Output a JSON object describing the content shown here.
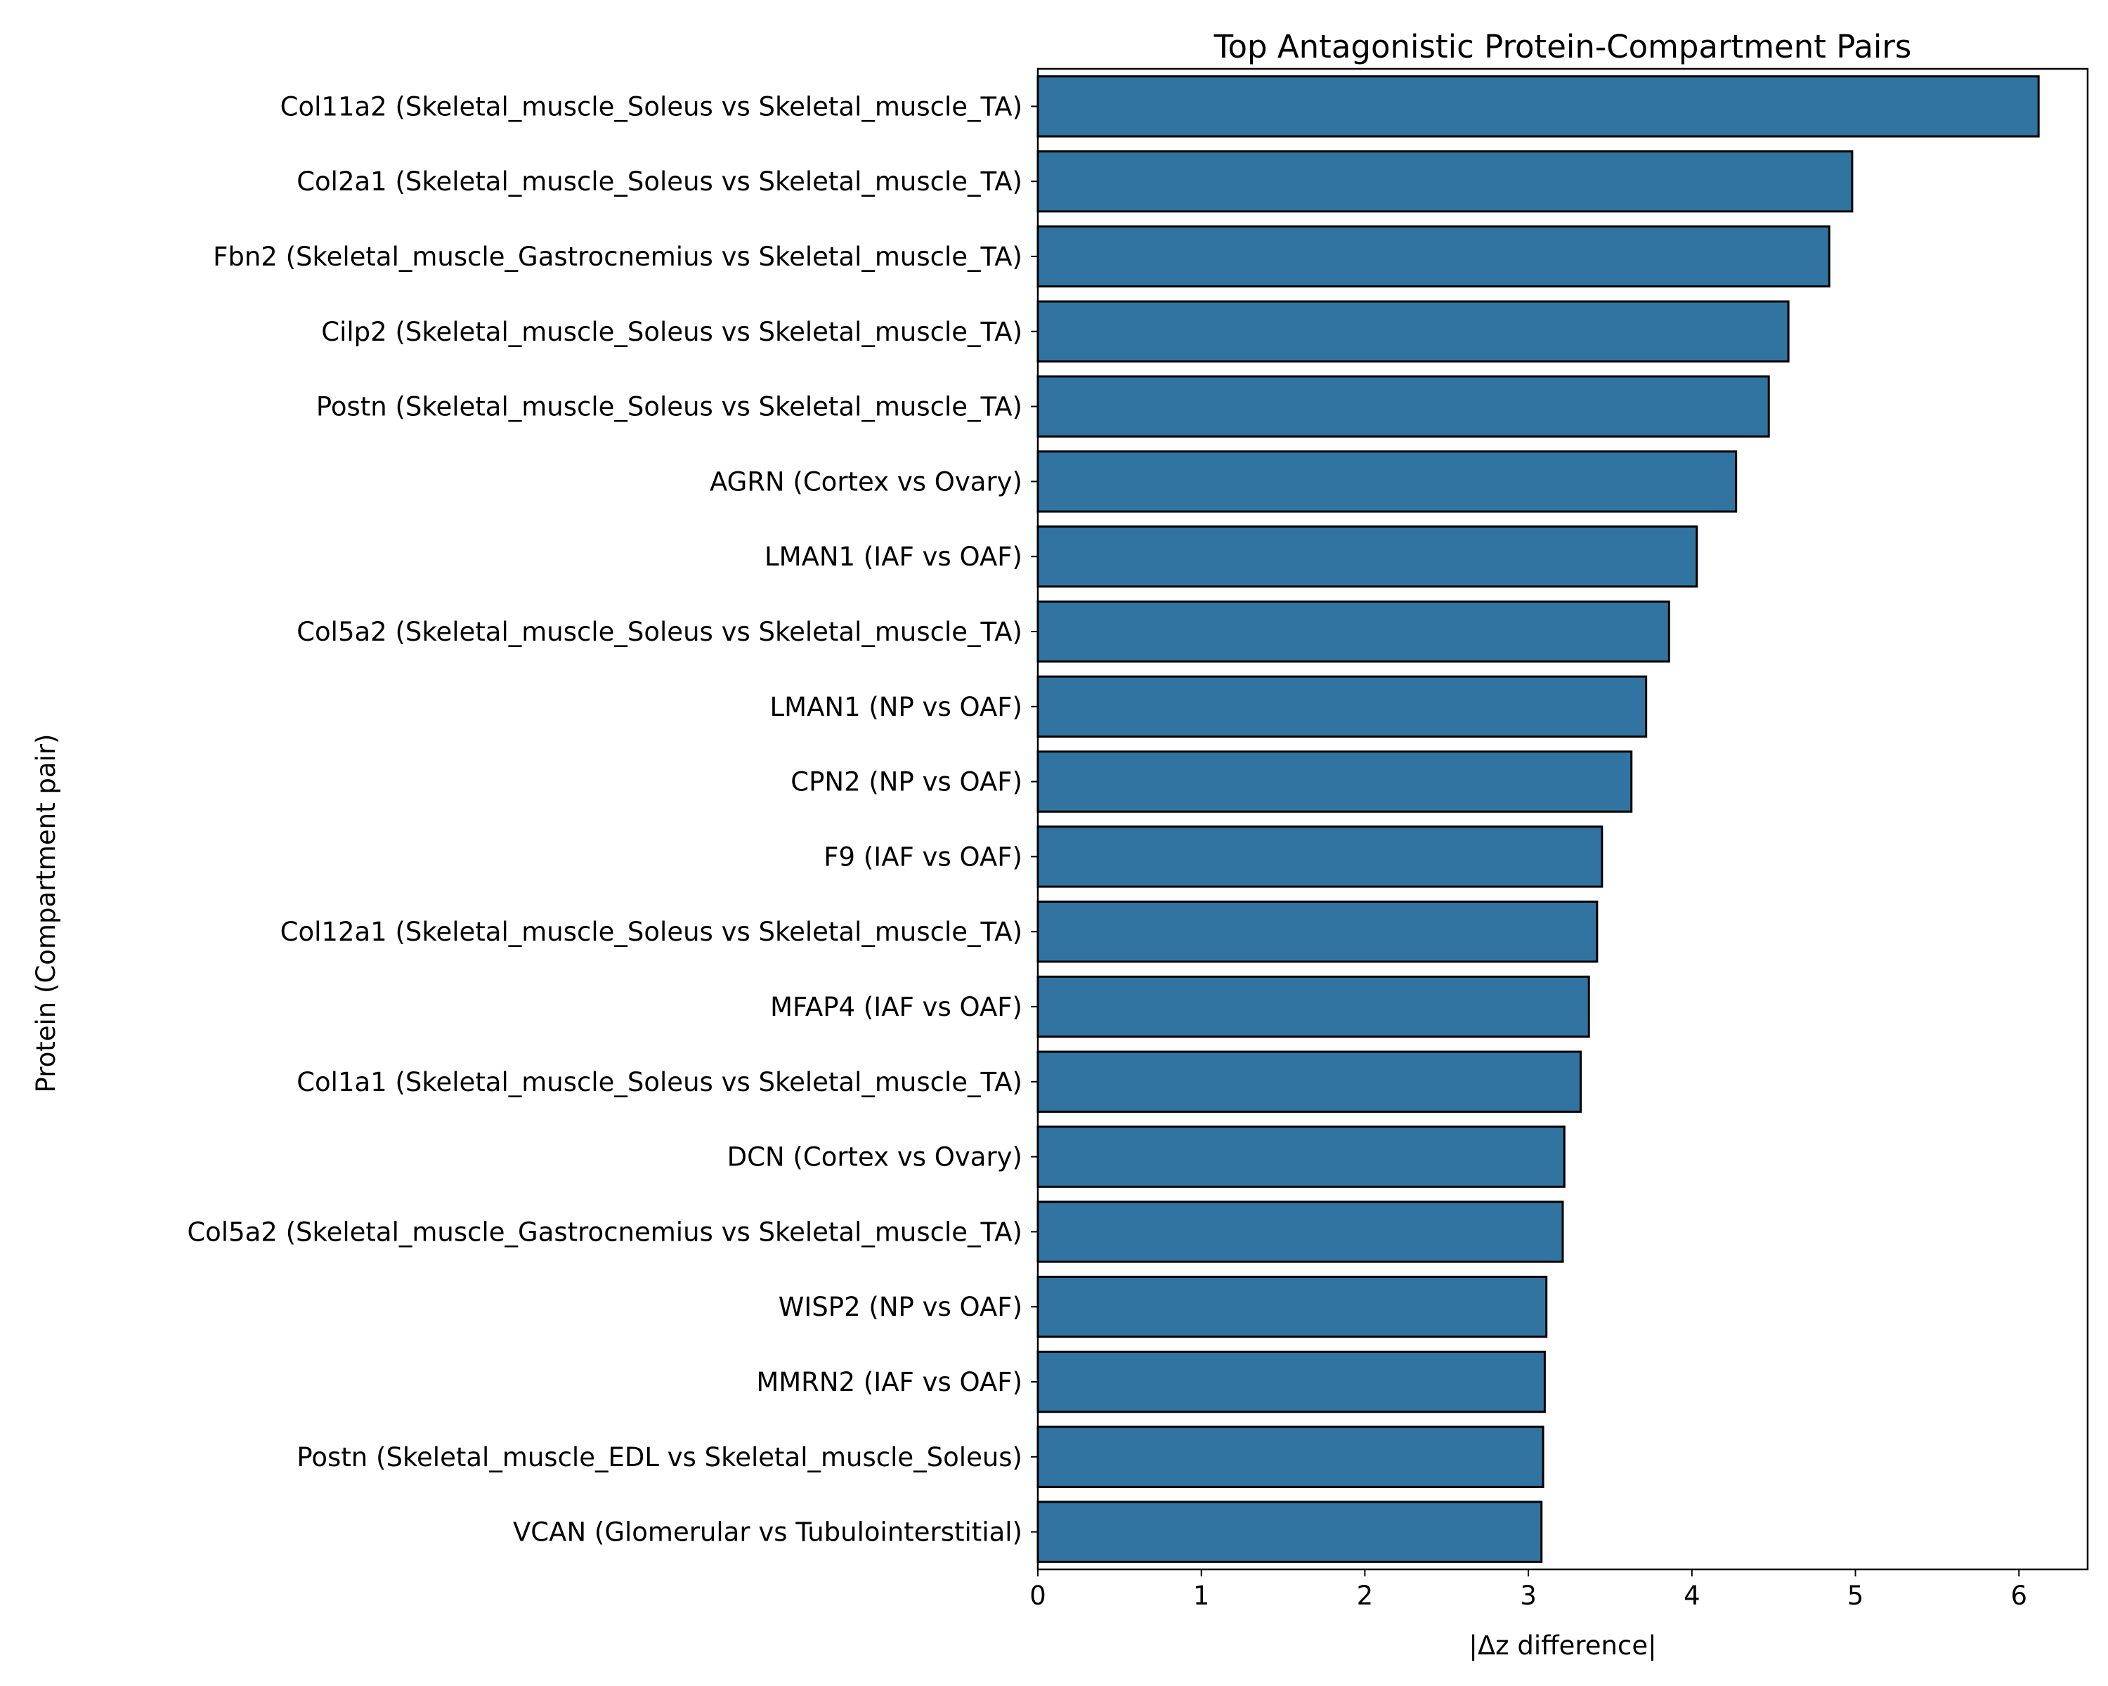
{
  "chart_data": {
    "type": "bar",
    "orientation": "horizontal",
    "title": "Top Antagonistic Protein-Compartment Pairs",
    "xlabel": "|Δz difference|",
    "ylabel": "Protein (Compartment pair)",
    "xlim": [
      0,
      6.42
    ],
    "xticks": [
      0,
      1,
      2,
      3,
      4,
      5,
      6
    ],
    "grid": false,
    "bar_color": "#3274a1",
    "edge_color": "#000000",
    "categories": [
      "Col11a2 (Skeletal_muscle_Soleus vs Skeletal_muscle_TA)",
      "Col2a1 (Skeletal_muscle_Soleus vs Skeletal_muscle_TA)",
      "Fbn2 (Skeletal_muscle_Gastrocnemius vs Skeletal_muscle_TA)",
      "Cilp2 (Skeletal_muscle_Soleus vs Skeletal_muscle_TA)",
      "Postn (Skeletal_muscle_Soleus vs Skeletal_muscle_TA)",
      "AGRN (Cortex vs Ovary)",
      "LMAN1 (IAF vs OAF)",
      "Col5a2 (Skeletal_muscle_Soleus vs Skeletal_muscle_TA)",
      "LMAN1 (NP vs OAF)",
      "CPN2 (NP vs OAF)",
      "F9 (IAF vs OAF)",
      "Col12a1 (Skeletal_muscle_Soleus vs Skeletal_muscle_TA)",
      "MFAP4 (IAF vs OAF)",
      "Col1a1 (Skeletal_muscle_Soleus vs Skeletal_muscle_TA)",
      "DCN (Cortex vs Ovary)",
      "Col5a2 (Skeletal_muscle_Gastrocnemius vs Skeletal_muscle_TA)",
      "WISP2 (NP vs OAF)",
      "MMRN2 (IAF vs OAF)",
      "Postn (Skeletal_muscle_EDL vs Skeletal_muscle_Soleus)",
      "VCAN (Glomerular vs Tubulointerstitial)"
    ],
    "values": [
      6.12,
      4.98,
      4.84,
      4.59,
      4.47,
      4.27,
      4.03,
      3.86,
      3.72,
      3.63,
      3.45,
      3.42,
      3.37,
      3.32,
      3.22,
      3.21,
      3.11,
      3.1,
      3.09,
      3.08
    ]
  }
}
